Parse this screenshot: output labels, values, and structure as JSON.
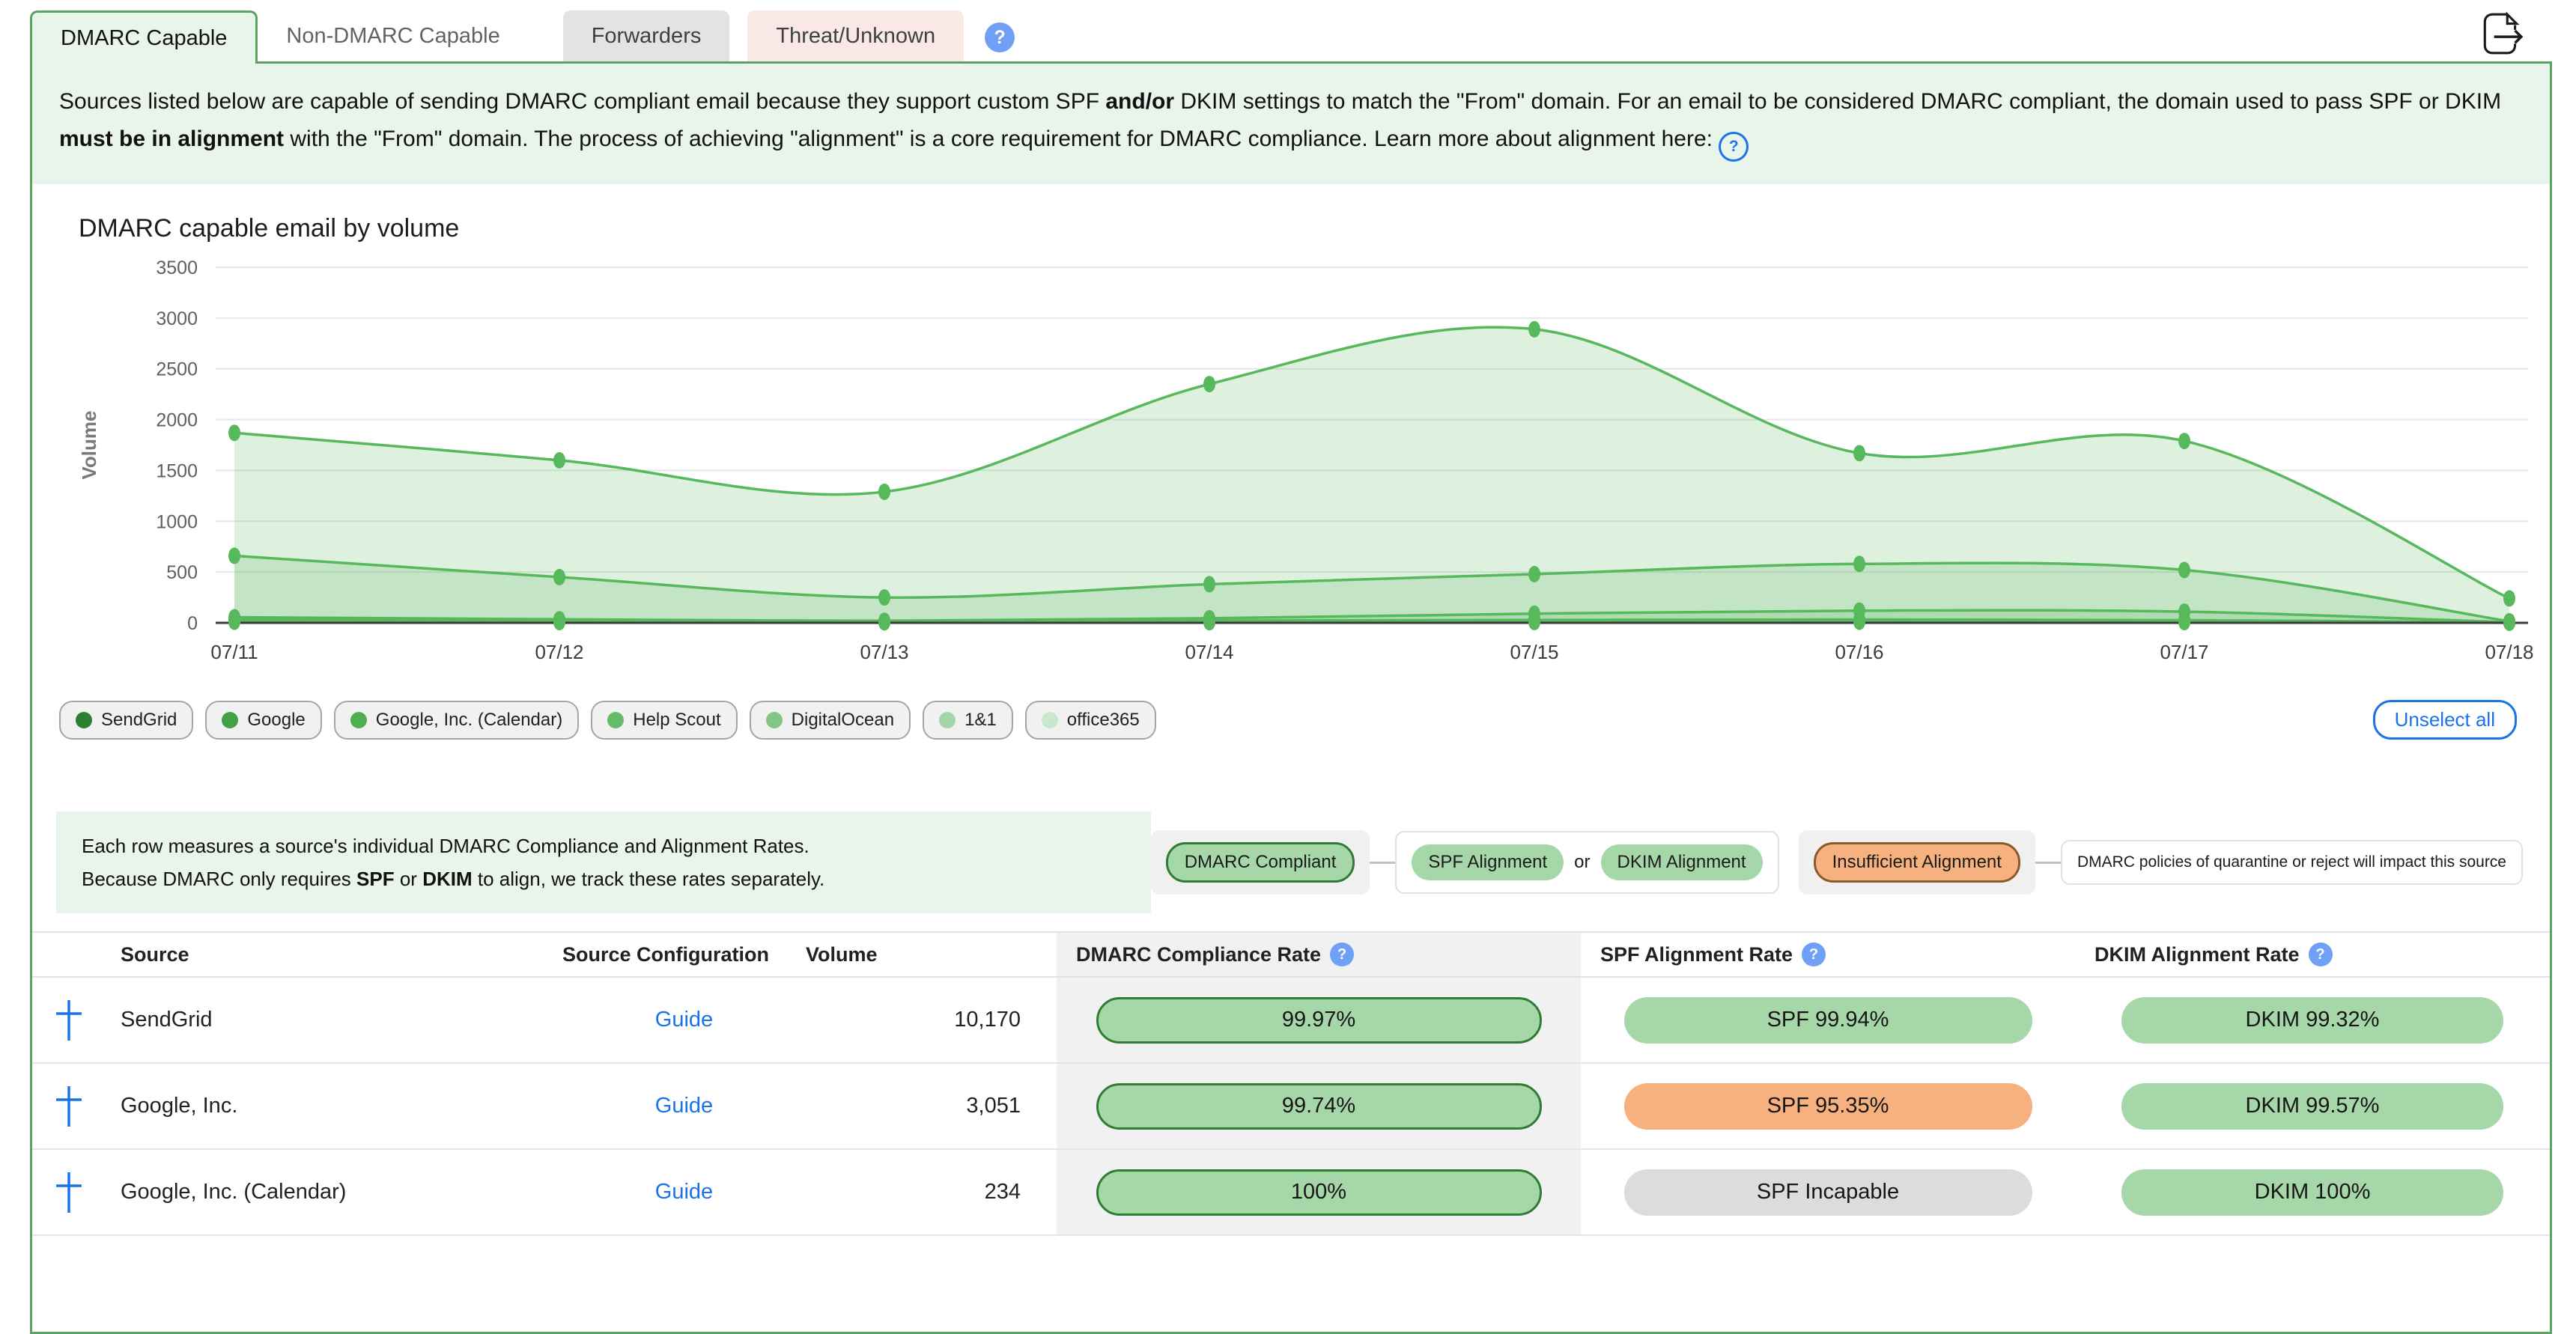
{
  "tabs": [
    {
      "label": "DMARC Capable",
      "state": "active"
    },
    {
      "label": "Non-DMARC Capable",
      "state": "plain"
    },
    {
      "label": "Forwarders",
      "state": "gray"
    },
    {
      "label": "Threat/Unknown",
      "state": "pink"
    }
  ],
  "icons": {
    "help_glyph": "?"
  },
  "description": {
    "p1": "Sources listed below are capable of sending DMARC compliant email because they support custom SPF ",
    "b1": "and/or",
    "p2": " DKIM settings to match the \"From\" domain. For an email to be considered DMARC compliant, the domain used to pass SPF or DKIM ",
    "b2": "must be in alignment",
    "p3": " with the \"From\" domain. The process of achieving \"alignment\" is a core requirement for DMARC compliance. Learn more about alignment here: "
  },
  "chart_data": {
    "type": "area",
    "title": "DMARC capable email by volume",
    "xlabel": "",
    "ylabel": "Volume",
    "x": [
      "07/11",
      "07/12",
      "07/13",
      "07/14",
      "07/15",
      "07/16",
      "07/17",
      "07/18"
    ],
    "ylim": [
      0,
      3500
    ],
    "ytick_step": 500,
    "grid": true,
    "legend_position": "bottom",
    "series": [
      {
        "name": "SendGrid",
        "values": [
          1870,
          1600,
          1290,
          2350,
          2890,
          1670,
          1790,
          240
        ]
      },
      {
        "name": "Google",
        "values": [
          660,
          450,
          250,
          380,
          480,
          580,
          520,
          15
        ]
      },
      {
        "name": "Google, Inc. (Calendar)",
        "values": [
          55,
          35,
          20,
          45,
          90,
          120,
          110,
          5
        ]
      },
      {
        "name": "Help Scout",
        "values": [
          40,
          28,
          15,
          22,
          28,
          32,
          26,
          4
        ]
      },
      {
        "name": "DigitalOcean",
        "values": [
          28,
          18,
          10,
          15,
          20,
          22,
          16,
          3
        ]
      },
      {
        "name": "1&1",
        "values": [
          18,
          12,
          8,
          10,
          12,
          14,
          10,
          2
        ]
      },
      {
        "name": "office365",
        "values": [
          10,
          7,
          5,
          6,
          8,
          10,
          7,
          1
        ]
      }
    ]
  },
  "legend": {
    "dot_colors": [
      "#2e7d32",
      "#43a047",
      "#4caf50",
      "#66bb6a",
      "#81c784",
      "#a5d6a9",
      "#c9e7ca"
    ],
    "unselect_label": "Unselect all"
  },
  "note": {
    "l1": "Each row measures a source's individual DMARC Compliance and Alignment Rates.",
    "l2p1": "Because DMARC only requires ",
    "l2b1": "SPF",
    "l2p2": " or ",
    "l2b2": "DKIM",
    "l2p3": " to align, we track these rates separately."
  },
  "badges": {
    "dmarc_compliant": "DMARC Compliant",
    "spf_alignment": "SPF Alignment",
    "or_label": "or",
    "dkim_alignment": "DKIM Alignment",
    "insufficient": "Insufficient Alignment",
    "policy_note": "DMARC policies of quarantine or reject will impact this source"
  },
  "table": {
    "columns": [
      {
        "label": "Source",
        "help": false
      },
      {
        "label": "Source Configuration",
        "help": false
      },
      {
        "label": "Volume",
        "help": false
      },
      {
        "label": "DMARC Compliance Rate",
        "help": true
      },
      {
        "label": "SPF Alignment Rate",
        "help": true
      },
      {
        "label": "DKIM Alignment Rate",
        "help": true
      }
    ],
    "rows": [
      {
        "source": "SendGrid",
        "config_link": "Guide",
        "volume": "10,170",
        "dmarc": {
          "label": "99.97%",
          "style": "green-bordered"
        },
        "spf": {
          "label": "SPF 99.94%",
          "style": "green"
        },
        "dkim": {
          "label": "DKIM 99.32%",
          "style": "green"
        }
      },
      {
        "source": "Google, Inc.",
        "config_link": "Guide",
        "volume": "3,051",
        "dmarc": {
          "label": "99.74%",
          "style": "green-bordered"
        },
        "spf": {
          "label": "SPF 95.35%",
          "style": "orange"
        },
        "dkim": {
          "label": "DKIM 99.57%",
          "style": "green"
        }
      },
      {
        "source": "Google, Inc. (Calendar)",
        "config_link": "Guide",
        "volume": "234",
        "dmarc": {
          "label": "100%",
          "style": "green-bordered"
        },
        "spf": {
          "label": "SPF Incapable",
          "style": "gray"
        },
        "dkim": {
          "label": "DKIM 100%",
          "style": "green"
        }
      }
    ]
  },
  "colors": {
    "panel_border": "#5ba360",
    "panel_green_bg": "#e9f4ea",
    "pill_green": "#a6d7a8",
    "pill_green_border": "#2e7d32",
    "pill_orange": "#f6b17e",
    "pill_orange_border": "#8a5a2b",
    "pill_gray": "#dcdcdc",
    "link_blue": "#1a73e8",
    "help_blue": "#6fa0f6",
    "chart_line": "#57b85c"
  }
}
